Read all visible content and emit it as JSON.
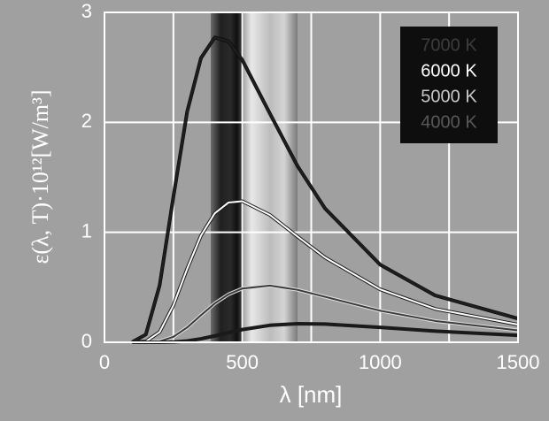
{
  "chart_data": {
    "type": "line",
    "xlabel": "λ [nm]",
    "ylabel": "ε(λ, T)·10¹²[W/m³]",
    "x": [
      100,
      150,
      200,
      250,
      300,
      350,
      400,
      450,
      500,
      600,
      700,
      800,
      1000,
      1200,
      1500
    ],
    "series": [
      {
        "name": "7000 K",
        "color": "#1e1e1e",
        "edge": "#000000",
        "text_color": "#3c3c3c",
        "values": [
          0.0006,
          0.0709,
          0.517,
          1.324,
          2.098,
          2.585,
          2.772,
          2.736,
          2.566,
          2.08,
          1.603,
          1.217,
          0.706,
          0.4255,
          0.2158
        ]
      },
      {
        "name": "6000 K",
        "color": "#ffffff",
        "edge": "#1a1a1a",
        "text_color": "#ffffff",
        "values": [
          0,
          0.0072,
          0.0933,
          0.3363,
          0.669,
          0.97,
          1.173,
          1.271,
          1.283,
          1.158,
          0.962,
          0.771,
          0.481,
          0.3034,
          0.1605
        ]
      },
      {
        "name": "5000 K",
        "color": "#3a3a3a",
        "edge": "#e0e0e0",
        "text_color": "#c8c8c8",
        "values": [
          0,
          0.0003,
          0.0085,
          0.0494,
          0.1352,
          0.2462,
          0.3531,
          0.4364,
          0.489,
          0.5156,
          0.477,
          0.4136,
          0.2869,
          0.1934,
          0.109
        ]
      },
      {
        "name": "4000 K",
        "color": "#1a1a1a",
        "edge": "#1a1a1a",
        "text_color": "#585858",
        "values": [
          0,
          0,
          0.0002,
          0.0028,
          0.0123,
          0.0315,
          0.0584,
          0.0881,
          0.1157,
          0.1545,
          0.1688,
          0.1655,
          0.1356,
          0.1016,
          0.0634
        ]
      }
    ],
    "xlim": [
      0,
      1500
    ],
    "xticks": [
      0,
      500,
      1000,
      1500
    ],
    "xminor": [
      250,
      750,
      1250
    ],
    "ylim": [
      0,
      3
    ],
    "yticks": [
      0,
      1,
      2,
      3
    ],
    "grid": true,
    "legend": "upper right"
  }
}
